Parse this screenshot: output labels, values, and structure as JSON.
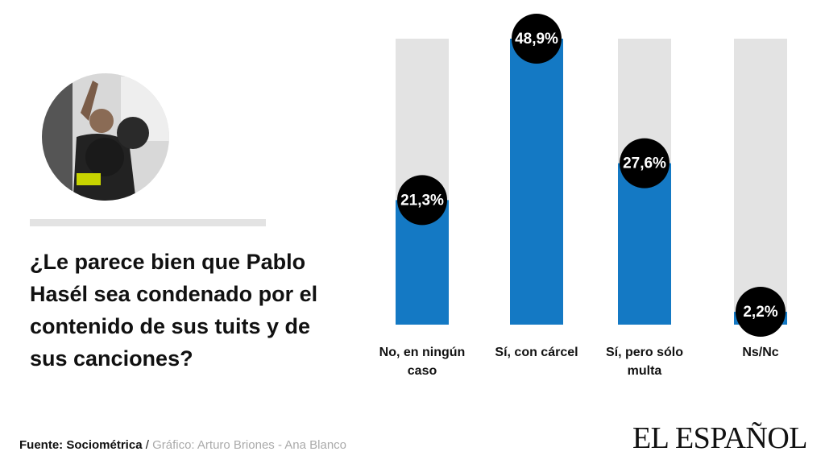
{
  "chart_data": {
    "type": "bar",
    "title": "¿Le parece bien que Pablo Hasél sea condenado por el contenido de sus tuits y de sus canciones?",
    "categories": [
      "No, en ningún caso",
      "Sí, con cárcel",
      "Sí, pero sólo multa",
      "Ns/Nc"
    ],
    "values": [
      21.3,
      48.9,
      27.6,
      2.2
    ],
    "value_labels": [
      "21,3%",
      "48,9%",
      "27,6%",
      "2,2%"
    ],
    "color": "#1479c4",
    "source": "Fuente: Sociométrica",
    "separator": "/",
    "credit": "Gráfico: Arturo Briones - Ana Blanco",
    "logo": "EL ESPAÑOL"
  }
}
